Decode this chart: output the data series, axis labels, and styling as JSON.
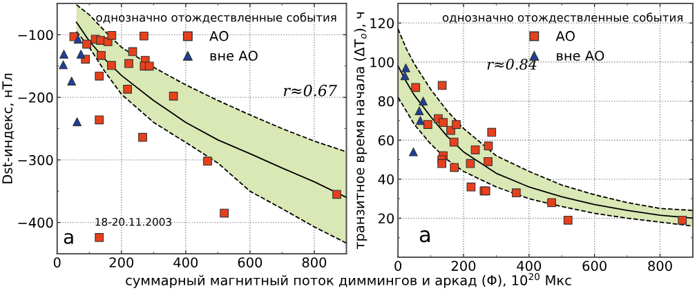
{
  "chart_data": [
    {
      "type": "scatter",
      "xlabel": "суммарный магнитный поток диммингов и аркад (Φ), 10$^{20}$ Мкс",
      "ylabel": "Dst-индекс, нТл",
      "legend_title": "однозначно отождествленные события",
      "xlim": [
        0,
        900
      ],
      "xticks": [
        0,
        200,
        400,
        600,
        800
      ],
      "ylim": [
        -450,
        -50
      ],
      "yticks": [
        {
          "value": -100,
          "label": "−100"
        },
        {
          "value": -200,
          "label": "−200"
        },
        {
          "value": -300,
          "label": "−300"
        },
        {
          "value": -400,
          "label": "−400"
        }
      ],
      "grid": true,
      "legend": "top right",
      "series": [
        {
          "name": "АО",
          "type": "scatter",
          "marker": "square",
          "color": "#e8401c",
          "x": [
            52,
            92,
            88,
            119,
            135,
            158,
            170,
            137,
            169,
            131,
            131,
            270,
            235,
            223,
            274,
            271,
            287,
            219,
            362,
            266,
            468,
            520,
            870,
            131
          ],
          "values": [
            -103,
            -115,
            -139,
            -107,
            -109,
            -111,
            -101,
            -133,
            -149,
            -166,
            -236,
            -102,
            -127,
            -146,
            -141,
            -150,
            -150,
            -187,
            -198,
            -264,
            -302,
            -385,
            -355,
            -424
          ]
        },
        {
          "name": "вне АО",
          "type": "scatter",
          "marker": "triangle",
          "color": "#1f3f9e",
          "x": [
            21,
            19,
            45,
            65,
            74,
            62
          ],
          "values": [
            -131,
            -148,
            -174,
            -107,
            -131,
            -239
          ]
        },
        {
          "type": "line",
          "color": "#000000",
          "line_style": "solid",
          "x": [
            60,
            100,
            150,
            200,
            300,
            400,
            500,
            600,
            700,
            800,
            900
          ],
          "values": [
            -80,
            -110,
            -140,
            -165,
            -205,
            -240,
            -268,
            -290,
            -313,
            -335,
            -360
          ],
          "lower": [
            -95,
            -120,
            -160,
            -195,
            -240,
            -272,
            -305,
            -350,
            -378,
            -407,
            -433
          ],
          "upper": [
            -52,
            -68,
            -95,
            -120,
            -152,
            -180,
            -205,
            -228,
            -250,
            -270,
            -287
          ]
        },
        {
          "type": "line",
          "color": "#000000",
          "line_style": "dashed",
          "x": [
            60,
            100,
            150,
            200,
            300,
            400,
            500,
            600,
            700,
            800,
            900
          ],
          "values": [
            -95,
            -120,
            -160,
            -195,
            -240,
            -272,
            -305,
            -350,
            -378,
            -407,
            -433
          ]
        },
        {
          "type": "line",
          "color": "#000000",
          "line_style": "dashed",
          "x": [
            60,
            100,
            150,
            200,
            300,
            400,
            500,
            600,
            700,
            800,
            900
          ],
          "values": [
            -52,
            -68,
            -95,
            -120,
            -152,
            -180,
            -205,
            -228,
            -250,
            -270,
            -287
          ]
        }
      ],
      "annotations": [
        "r≈0.67",
        "а",
        {
          "text": "18-20.11.2003",
          "x": 131,
          "y": -424
        }
      ]
    },
    {
      "type": "scatter",
      "ylabel": "транзитное время начала (ΔT$_{o}$), ч",
      "legend_title": "однозначно отождествленные события",
      "xlim": [
        0,
        900
      ],
      "xticks": [
        0,
        200,
        400,
        600,
        800
      ],
      "ylim": [
        0,
        130
      ],
      "yticks": [
        20,
        40,
        60,
        80,
        100,
        120
      ],
      "grid": true,
      "legend": "top right",
      "series": [
        {
          "name": "АО",
          "type": "scatter",
          "marker": "square",
          "color": "#e8401c",
          "x": [
            54,
            135,
            91,
            123,
            138,
            161,
            178,
            171,
            236,
            276,
            286,
            138,
            134,
            134,
            172,
            221,
            223,
            263,
            268,
            275,
            361,
            469,
            519,
            868
          ],
          "values": [
            87,
            88,
            68,
            71,
            69,
            65,
            68,
            59,
            55,
            57,
            64,
            52,
            50,
            48,
            46,
            48,
            36,
            34,
            34,
            49,
            33,
            28,
            19,
            19
          ]
        },
        {
          "name": "вне АО",
          "type": "scatter",
          "marker": "triangle",
          "color": "#1f3f9e",
          "x": [
            24,
            21,
            77,
            65,
            68,
            47
          ],
          "values": [
            97,
            93,
            80,
            75,
            70,
            54
          ]
        },
        {
          "type": "line",
          "color": "#000000",
          "line_style": "solid",
          "x": [
            0,
            25,
            50,
            100,
            150,
            200,
            300,
            400,
            500,
            600,
            700,
            800,
            900
          ],
          "values": [
            98,
            90,
            83,
            72,
            62,
            54,
            43,
            36,
            31,
            27,
            24,
            21.5,
            20
          ],
          "lower": [
            82,
            75,
            68,
            58,
            50,
            44,
            36,
            30,
            26,
            22.5,
            20,
            18,
            16
          ],
          "upper": [
            117,
            107,
            99,
            86,
            75,
            66,
            52,
            44,
            37,
            32,
            28,
            25,
            24
          ]
        },
        {
          "type": "line",
          "color": "#000000",
          "line_style": "dashed",
          "x": [
            0,
            25,
            50,
            100,
            150,
            200,
            300,
            400,
            500,
            600,
            700,
            800,
            900
          ],
          "values": [
            82,
            75,
            68,
            58,
            50,
            44,
            36,
            30,
            26,
            22.5,
            20,
            18,
            16
          ]
        },
        {
          "type": "line",
          "color": "#000000",
          "line_style": "dashed",
          "x": [
            0,
            25,
            50,
            100,
            150,
            200,
            300,
            400,
            500,
            600,
            700,
            800,
            900
          ],
          "values": [
            117,
            107,
            99,
            86,
            75,
            66,
            52,
            44,
            37,
            32,
            28,
            25,
            24
          ]
        }
      ],
      "annotations": [
        "r≈0.84",
        "а"
      ]
    }
  ]
}
